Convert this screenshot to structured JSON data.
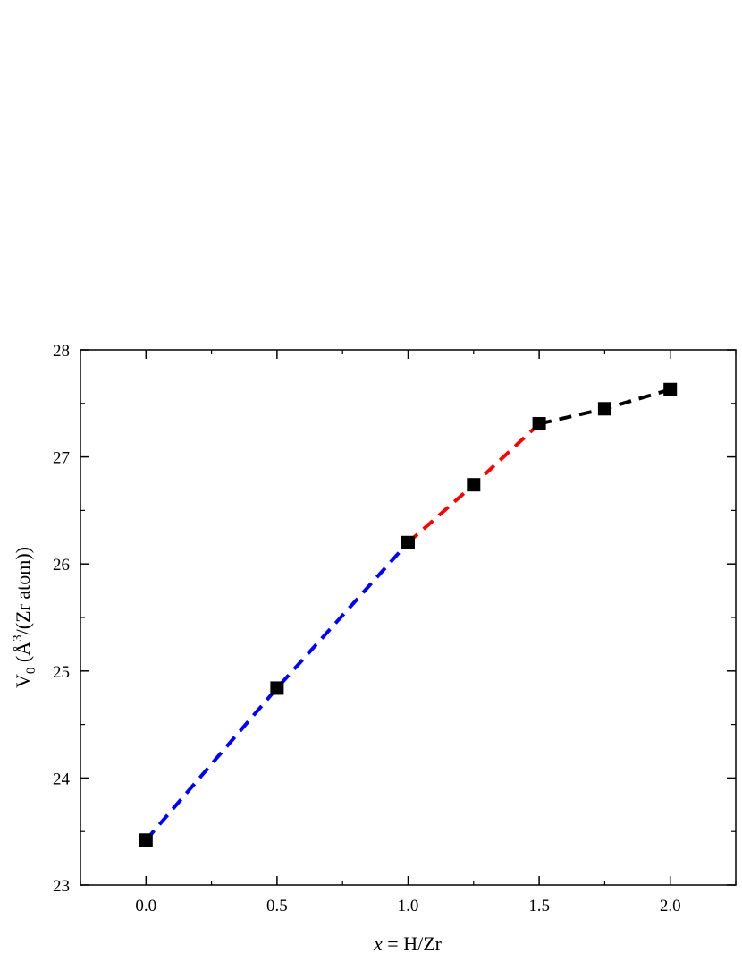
{
  "chart_data": {
    "type": "scatter",
    "title": "",
    "xlabel_var": "x",
    "xlabel_rest": " = H/Zr",
    "ylabel_main": "V",
    "ylabel_sub": "0",
    "ylabel_pre": " (Å",
    "ylabel_sup": "3",
    "ylabel_post": "/(Zr atom))",
    "xlim": [
      -0.25,
      2.25
    ],
    "ylim": [
      23,
      28
    ],
    "x_ticks": [
      0.0,
      0.5,
      1.0,
      1.5,
      2.0
    ],
    "x_tick_labels": [
      "0.0",
      "0.5",
      "1.0",
      "1.5",
      "2.0"
    ],
    "y_ticks": [
      23,
      24,
      25,
      26,
      27,
      28
    ],
    "y_tick_labels": [
      "23",
      "24",
      "25",
      "26",
      "27",
      "28"
    ],
    "grid": false,
    "series": [
      {
        "marker": "square",
        "color": "#000000",
        "x": [
          0.0,
          0.5,
          1.0,
          1.25,
          1.5,
          1.75,
          2.0
        ],
        "y": [
          23.42,
          24.84,
          26.2,
          26.74,
          27.31,
          27.45,
          27.63
        ]
      }
    ],
    "fit_lines": [
      {
        "style": "dashed",
        "color": "#0000ff",
        "x": [
          0.0,
          0.5,
          1.0
        ],
        "y": [
          23.42,
          24.84,
          26.2
        ]
      },
      {
        "style": "dashed",
        "color": "#ff0000",
        "x": [
          1.0,
          1.25,
          1.5
        ],
        "y": [
          26.2,
          26.74,
          27.31
        ]
      },
      {
        "style": "dashed",
        "color": "#000000",
        "x": [
          1.5,
          1.75,
          2.0
        ],
        "y": [
          27.31,
          27.45,
          27.63
        ]
      }
    ]
  }
}
